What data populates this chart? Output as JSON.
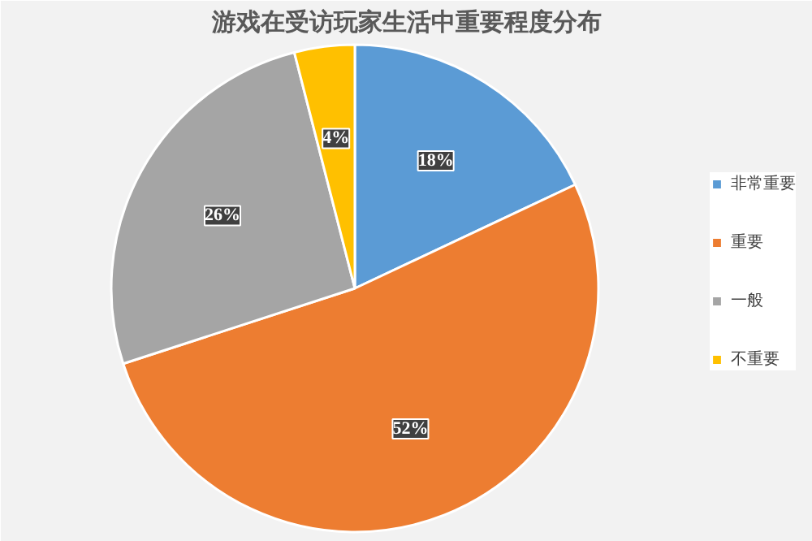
{
  "chart_data": {
    "type": "pie",
    "title": "游戏在受访玩家生活中重要程度分布",
    "categories": [
      "非常重要",
      "重要",
      "一般",
      "不重要"
    ],
    "values": [
      18,
      52,
      26,
      4
    ],
    "colors": [
      "#5b9bd5",
      "#ed7d31",
      "#a5a5a5",
      "#ffc000"
    ],
    "value_labels": [
      "18%",
      "52%",
      "26%",
      "4%"
    ],
    "legend": "right"
  }
}
